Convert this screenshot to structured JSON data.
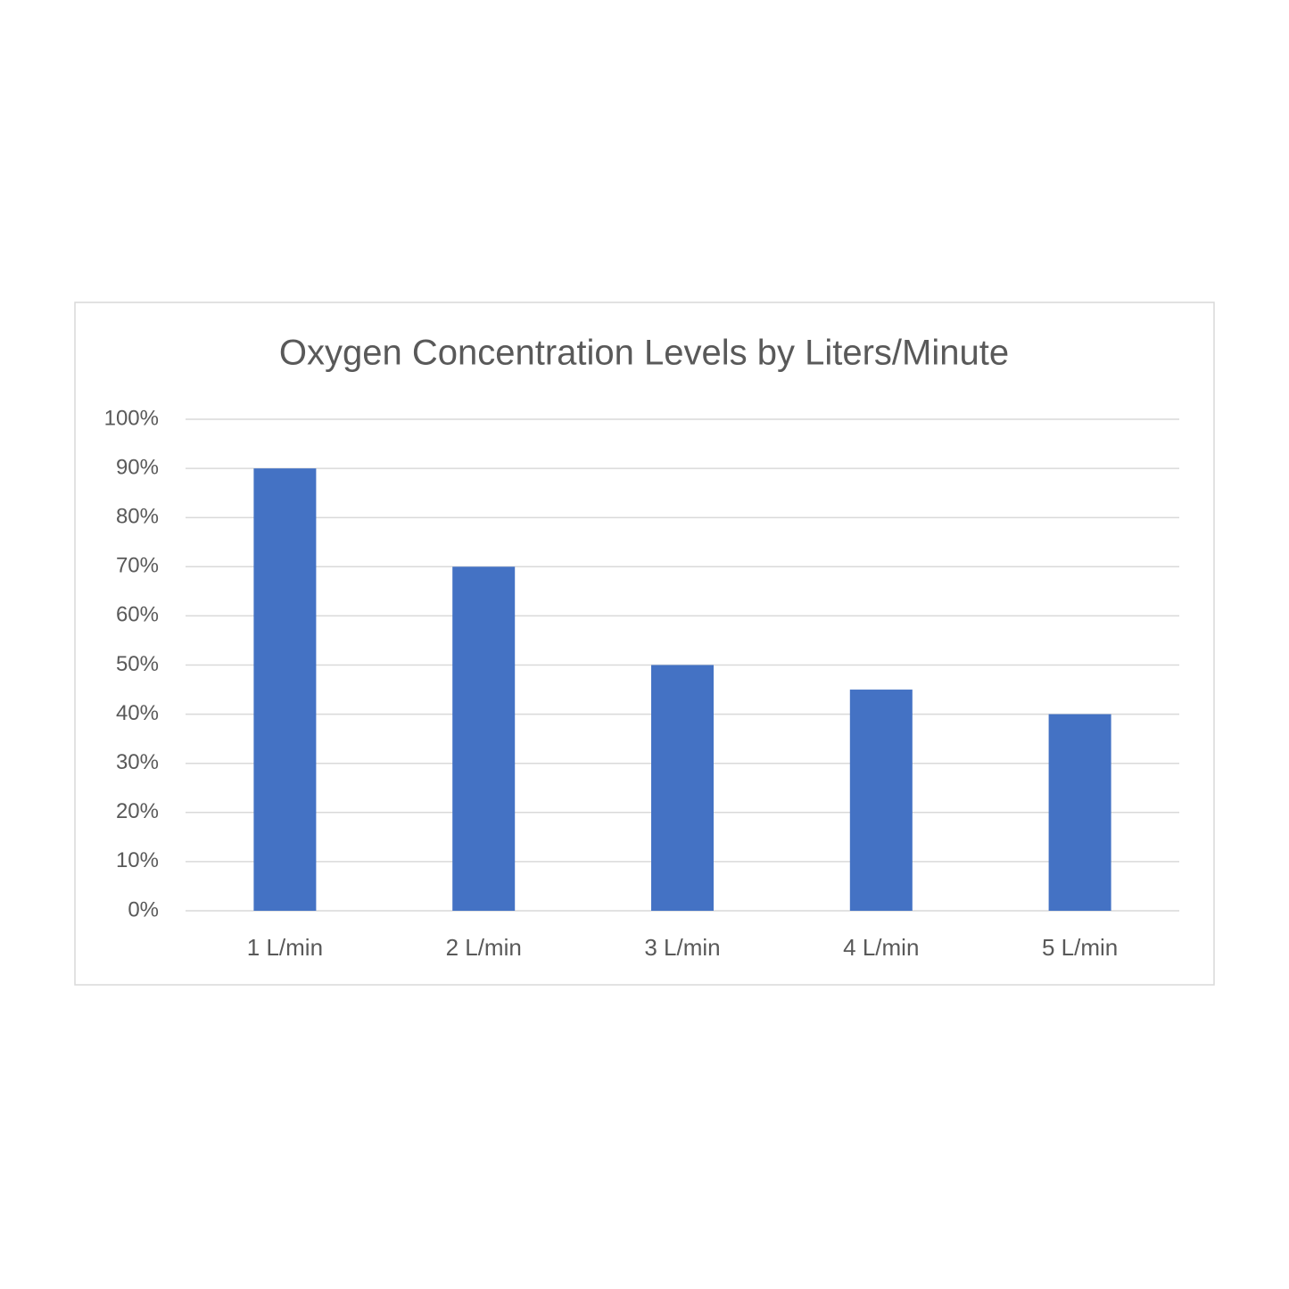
{
  "chart_data": {
    "type": "bar",
    "title": "Oxygen Concentration Levels by Liters/Minute",
    "categories": [
      "1 L/min",
      "2 L/min",
      "3 L/min",
      "4 L/min",
      "5 L/min"
    ],
    "values": [
      90,
      70,
      50,
      45,
      40
    ],
    "color": "#4472c4",
    "ylim": [
      0,
      100
    ],
    "yticks": [
      {
        "value": 0,
        "label": "0%"
      },
      {
        "value": 10,
        "label": "10%"
      },
      {
        "value": 20,
        "label": "20%"
      },
      {
        "value": 30,
        "label": "30%"
      },
      {
        "value": 40,
        "label": "40%"
      },
      {
        "value": 50,
        "label": "50%"
      },
      {
        "value": 60,
        "label": "60%"
      },
      {
        "value": 70,
        "label": "70%"
      },
      {
        "value": 80,
        "label": "80%"
      },
      {
        "value": 90,
        "label": "90%"
      },
      {
        "value": 100,
        "label": "100%"
      }
    ],
    "grid": true
  }
}
